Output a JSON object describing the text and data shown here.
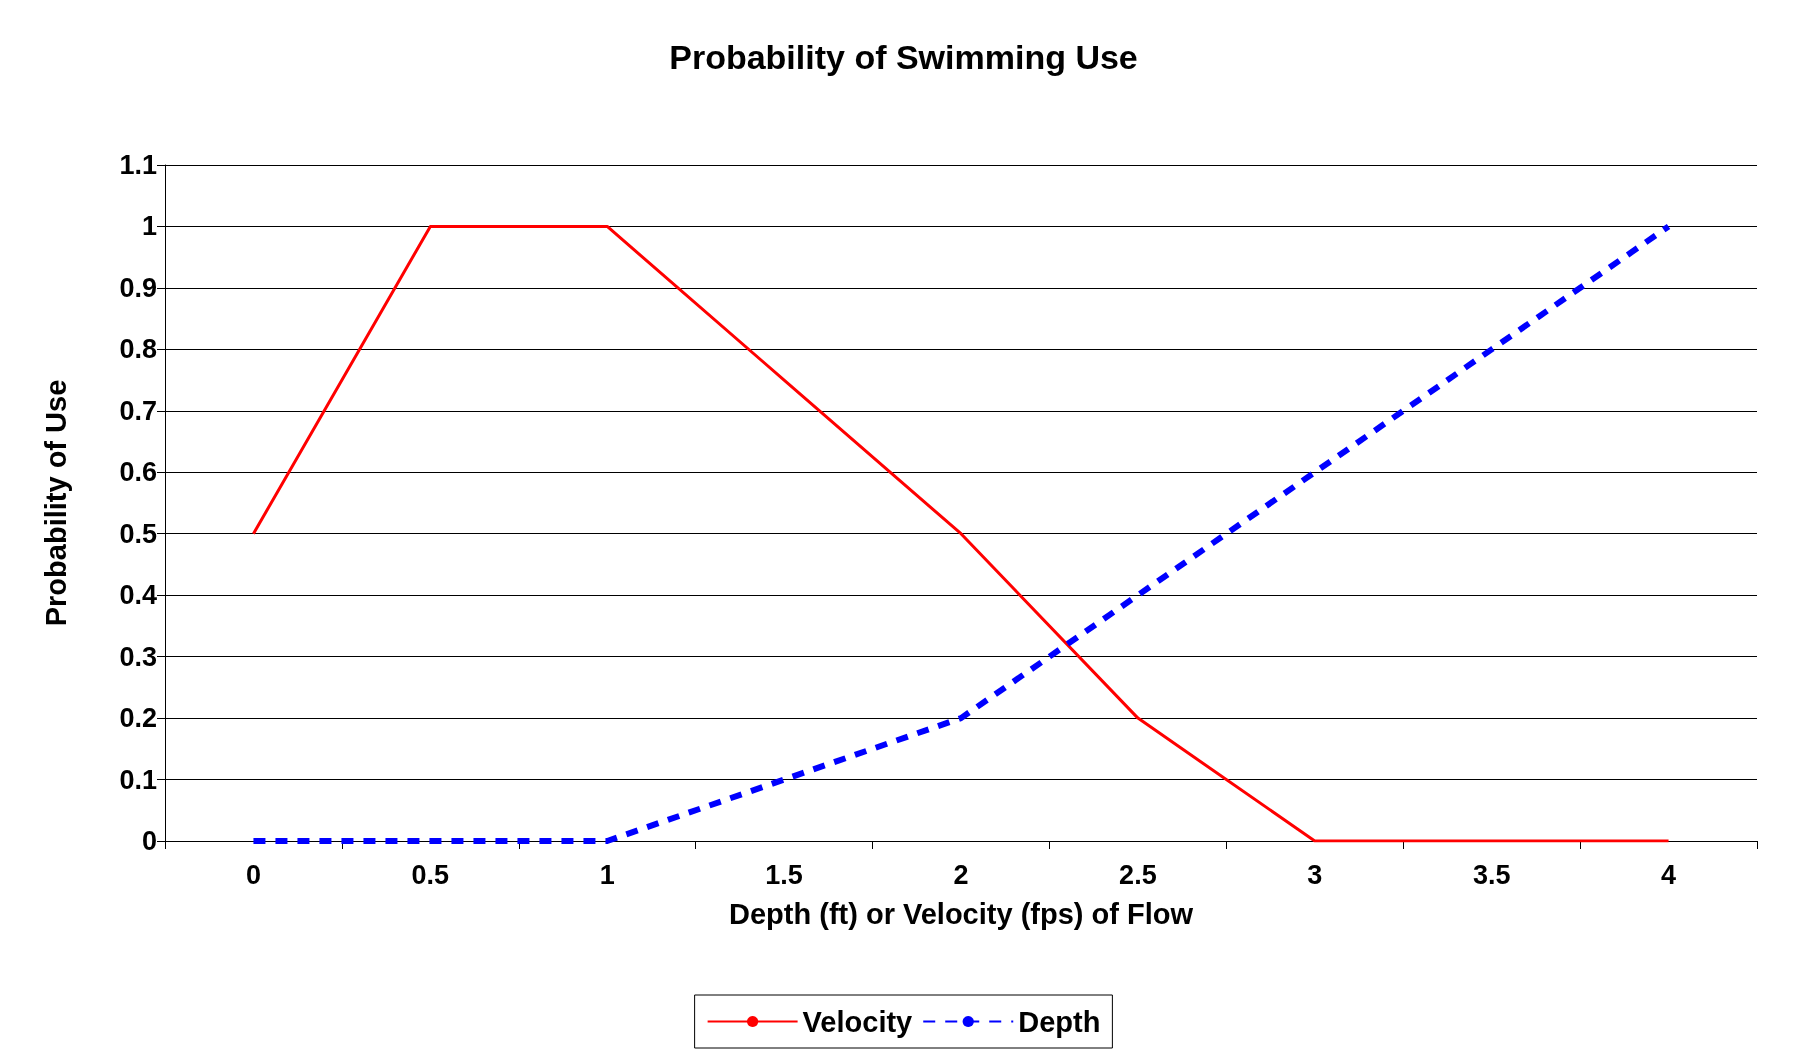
{
  "chart_data": {
    "type": "line",
    "title": "Probability of Swimming Use",
    "xlabel": "Depth (ft) or Velocity (fps) of Flow",
    "ylabel": "Probability of Use",
    "categories": [
      "0",
      "0.5",
      "1",
      "1.5",
      "2",
      "2.5",
      "3",
      "3.5",
      "4"
    ],
    "series": [
      {
        "name": "Velocity",
        "color": "#ff0000",
        "line_style": "solid",
        "values": [
          0.5,
          1,
          1,
          0.75,
          0.5,
          0.2,
          0,
          0,
          0
        ]
      },
      {
        "name": "Depth",
        "color": "#0000ff",
        "line_style": "dashed",
        "values": [
          0,
          0,
          0,
          0.1,
          0.2,
          0.4,
          0.6,
          0.8,
          1
        ]
      }
    ],
    "ylim": [
      0,
      1.1
    ],
    "yticks": [
      0,
      0.1,
      0.2,
      0.3,
      0.4,
      0.5,
      0.6,
      0.7,
      0.8,
      0.9,
      1,
      1.1
    ],
    "grid": "y",
    "legend": "bottom",
    "marker": "none"
  }
}
